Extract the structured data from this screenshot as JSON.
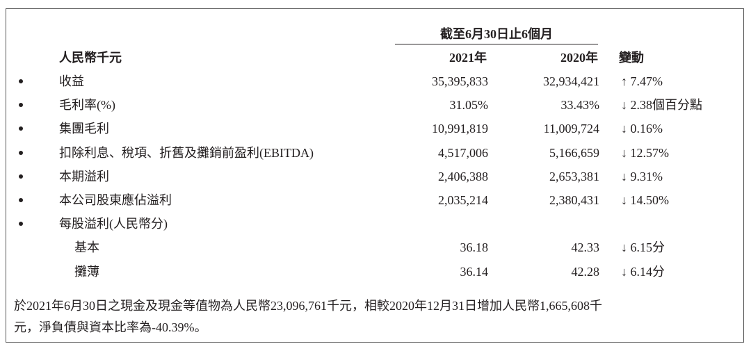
{
  "table": {
    "period_header": "截至6月30日止6個月",
    "columns": [
      "人民幣千元",
      "2021年",
      "2020年",
      "變動"
    ],
    "rows": [
      {
        "label": "收益",
        "y2021": "35,395,833",
        "y2020": "32,934,421",
        "change": "↑ 7.47%"
      },
      {
        "label": "毛利率(%)",
        "y2021": "31.05%",
        "y2020": "33.43%",
        "change": "↓ 2.38個百分點"
      },
      {
        "label": "集團毛利",
        "y2021": "10,991,819",
        "y2020": "11,009,724",
        "change": "↓ 0.16%"
      },
      {
        "label": "扣除利息、稅項、折舊及攤銷前盈利(EBITDA)",
        "y2021": "4,517,006",
        "y2020": "5,166,659",
        "change": "↓ 12.57%"
      },
      {
        "label": "本期溢利",
        "y2021": "2,406,388",
        "y2020": "2,653,381",
        "change": "↓ 9.31%"
      },
      {
        "label": "本公司股東應佔溢利",
        "y2021": "2,035,214",
        "y2020": "2,380,431",
        "change": "↓ 14.50%"
      },
      {
        "label": "每股溢利(人民幣分)",
        "subitems": [
          {
            "label": "基本",
            "y2021": "36.18",
            "y2020": "42.33",
            "change": "↓ 6.15分"
          },
          {
            "label": "攤薄",
            "y2021": "36.14",
            "y2020": "42.28",
            "change": "↓ 6.14分"
          }
        ]
      }
    ]
  },
  "footer": {
    "lines": [
      "於2021年6月30日之現金及現金等值物為人民幣23,096,761千元，相較2020年12月31日增加人民幣1,665,608千",
      "元，淨負債與資本比率為-40.39%。"
    ]
  }
}
